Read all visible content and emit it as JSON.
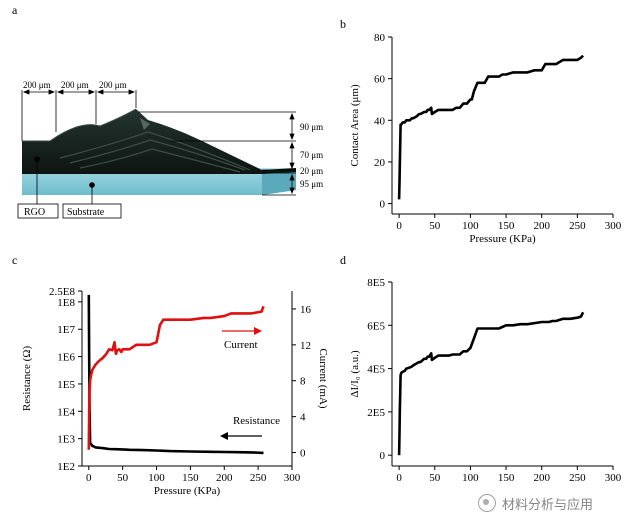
{
  "panel_labels": {
    "a": "a",
    "b": "b",
    "c": "c",
    "d": "d"
  },
  "schematic": {
    "dims_top": [
      "200 μm",
      "200 μm",
      "200 μm"
    ],
    "dims_right": [
      "90 μm",
      "70 μm",
      "20 μm",
      "95 μm"
    ],
    "legend": [
      "RGO",
      "Substrate"
    ],
    "colors": {
      "film": "#17221d",
      "film_edge": "#3a4a44",
      "substrate": "#8fd0dc",
      "substrate_dark": "#5bb3c4"
    }
  },
  "watermark": "材料分析与应用",
  "chart_data": [
    {
      "panel": "b",
      "type": "line",
      "xlabel": "Pressure (KPa)",
      "ylabel": "Contact Area (μm)",
      "xlim": [
        -10,
        300
      ],
      "ylim": [
        -5,
        80
      ],
      "xticks": [
        0,
        50,
        100,
        150,
        200,
        250,
        300
      ],
      "yticks": [
        0,
        20,
        40,
        60,
        80
      ],
      "ytick_labels": [
        "0",
        "20",
        "40",
        "60",
        "80"
      ],
      "series": [
        {
          "color": "#000000",
          "x": [
            0,
            0.5,
            1,
            2,
            3,
            5,
            8,
            10,
            15,
            18,
            20,
            25,
            28,
            30,
            35,
            38,
            40,
            42,
            45,
            46,
            50,
            55,
            60,
            65,
            70,
            75,
            80,
            85,
            90,
            95,
            100,
            102,
            105,
            110,
            115,
            120,
            125,
            130,
            140,
            145,
            150,
            160,
            170,
            180,
            190,
            200,
            205,
            210,
            220,
            230,
            240,
            250,
            255,
            258
          ],
          "y": [
            2,
            10,
            18,
            38,
            38,
            39,
            39,
            40,
            40,
            41,
            41,
            42,
            43,
            43,
            44,
            44,
            45,
            45,
            46,
            43,
            44,
            45,
            45,
            45,
            45,
            45,
            46,
            46,
            48,
            48,
            50,
            50,
            54,
            58,
            58,
            58,
            61,
            61,
            61,
            62,
            62,
            63,
            63,
            63,
            64,
            64,
            67,
            67,
            67,
            69,
            69,
            69,
            70,
            71
          ]
        }
      ]
    },
    {
      "panel": "c",
      "type": "line",
      "xlabel": "Pressure (KPa)",
      "ylabel": "Resistance (Ω)",
      "y2label": "Current (mA)",
      "xlim": [
        -10,
        300
      ],
      "ylim_log": [
        100,
        250000000
      ],
      "y2lim": [
        -1.5,
        18
      ],
      "xticks": [
        0,
        50,
        100,
        150,
        200,
        250,
        300
      ],
      "yticks": [
        100,
        1000,
        10000,
        100000,
        1000000,
        10000000,
        100000000,
        250000000
      ],
      "ytick_labels": [
        "1E2",
        "1E3",
        "1E4",
        "1E5",
        "1E6",
        "1E7",
        "1E8",
        "2.5E8"
      ],
      "y2ticks": [
        0,
        4,
        8,
        12,
        16
      ],
      "y2tick_labels": [
        "0",
        "4",
        "8",
        "12",
        "16"
      ],
      "annotations": {
        "current": "Current",
        "resistance": "Resistance"
      },
      "series": [
        {
          "name": "Resistance",
          "axis": "left",
          "color": "#000000",
          "x": [
            0,
            0.5,
            1,
            2,
            5,
            10,
            20,
            30,
            40,
            60,
            80,
            100,
            120,
            150,
            180,
            200,
            220,
            240,
            258
          ],
          "y": [
            180000000,
            2000000,
            20000,
            700,
            550,
            480,
            450,
            420,
            410,
            390,
            380,
            370,
            350,
            340,
            330,
            325,
            320,
            315,
            300
          ]
        },
        {
          "name": "Current",
          "axis": "right",
          "color": "#e01010",
          "x": [
            0,
            0.5,
            1,
            2,
            3,
            5,
            10,
            15,
            20,
            25,
            30,
            35,
            38,
            40,
            42,
            45,
            48,
            50,
            60,
            70,
            80,
            90,
            100,
            105,
            110,
            120,
            150,
            170,
            180,
            200,
            210,
            220,
            240,
            255,
            258
          ],
          "y": [
            0.3,
            4,
            7,
            8,
            8.5,
            9.2,
            9.8,
            10.2,
            10.5,
            10.9,
            11.5,
            11.4,
            12.3,
            11,
            11.4,
            11.5,
            11.2,
            11.5,
            11.5,
            12,
            12,
            12,
            12.3,
            14.2,
            14.8,
            14.8,
            14.8,
            15,
            15,
            15.2,
            15.5,
            15.5,
            15.5,
            15.7,
            16.3
          ]
        }
      ]
    },
    {
      "panel": "d",
      "type": "line",
      "xlabel": "",
      "ylabel": "ΔI/I₀ (a.u.)",
      "xlim": [
        -10,
        300
      ],
      "ylim": [
        -50000,
        800000
      ],
      "xticks": [
        0,
        50,
        100,
        150,
        200,
        250,
        300
      ],
      "yticks": [
        0,
        200000,
        400000,
        600000,
        800000
      ],
      "ytick_labels": [
        "0",
        "2E5",
        "4E5",
        "6E5",
        "8E5"
      ],
      "series": [
        {
          "color": "#000000",
          "x": [
            0,
            0.5,
            1,
            2,
            3,
            5,
            8,
            10,
            15,
            18,
            20,
            25,
            28,
            30,
            35,
            38,
            40,
            42,
            45,
            46,
            50,
            55,
            60,
            65,
            70,
            75,
            80,
            85,
            90,
            95,
            100,
            105,
            110,
            120,
            130,
            140,
            150,
            160,
            170,
            180,
            190,
            200,
            210,
            215,
            220,
            230,
            240,
            250,
            255,
            258
          ],
          "y": [
            0,
            100000,
            200000,
            370000,
            380000,
            385000,
            390000,
            400000,
            405000,
            410000,
            415000,
            425000,
            430000,
            430000,
            445000,
            445000,
            455000,
            455000,
            470000,
            440000,
            450000,
            460000,
            460000,
            460000,
            460000,
            465000,
            465000,
            465000,
            480000,
            480000,
            495000,
            540000,
            585000,
            585000,
            585000,
            585000,
            600000,
            600000,
            605000,
            605000,
            610000,
            615000,
            615000,
            620000,
            620000,
            630000,
            630000,
            635000,
            640000,
            660000
          ]
        }
      ]
    }
  ]
}
